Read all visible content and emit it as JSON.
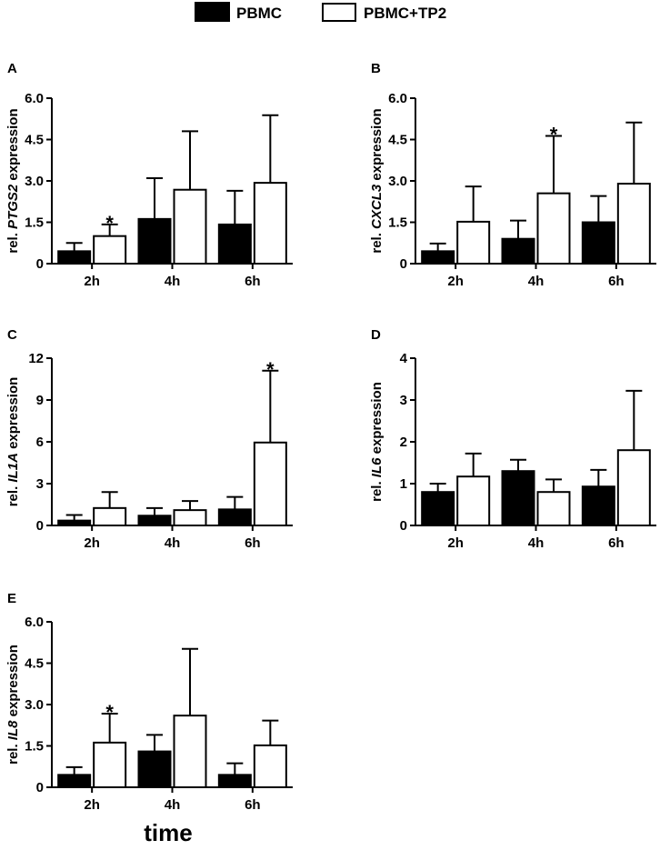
{
  "legend": [
    {
      "label": "PBMC",
      "fill": "#000000"
    },
    {
      "label": "PBMC+TP2",
      "fill": "#ffffff"
    }
  ],
  "x_title": "time",
  "chart_data": [
    {
      "type": "bar",
      "panel": "A",
      "ylabel_prefix": "rel. ",
      "ylabel_gene": "PTGS2",
      "ylabel_suffix": " expression",
      "categories": [
        "2h",
        "4h",
        "6h"
      ],
      "ylim": [
        0,
        6.0
      ],
      "yticks": [
        0,
        1.5,
        3.0,
        4.5,
        6.0
      ],
      "ytick_labels": [
        "0",
        "1.5",
        "3.0",
        "4.5",
        "6.0"
      ],
      "series": [
        {
          "name": "PBMC",
          "values": [
            0.45,
            1.62,
            1.42
          ],
          "errors": [
            0.3,
            1.48,
            1.22
          ]
        },
        {
          "name": "PBMC+TP2",
          "values": [
            1.0,
            2.68,
            2.93
          ],
          "errors": [
            0.42,
            2.12,
            2.45
          ]
        }
      ],
      "significance": [
        {
          "category": "2h",
          "series": "PBMC+TP2",
          "mark": "*"
        }
      ]
    },
    {
      "type": "bar",
      "panel": "B",
      "ylabel_prefix": "rel. ",
      "ylabel_gene": "CXCL3",
      "ylabel_suffix": " expression",
      "categories": [
        "2h",
        "4h",
        "6h"
      ],
      "ylim": [
        0,
        6.0
      ],
      "yticks": [
        0,
        1.5,
        3.0,
        4.5,
        6.0
      ],
      "ytick_labels": [
        "0",
        "1.5",
        "3.0",
        "4.5",
        "6.0"
      ],
      "series": [
        {
          "name": "PBMC",
          "values": [
            0.45,
            0.9,
            1.5
          ],
          "errors": [
            0.28,
            0.66,
            0.95
          ]
        },
        {
          "name": "PBMC+TP2",
          "values": [
            1.52,
            2.55,
            2.9
          ],
          "errors": [
            1.28,
            2.08,
            2.22
          ]
        }
      ],
      "significance": [
        {
          "category": "4h",
          "series": "PBMC+TP2",
          "mark": "*"
        }
      ]
    },
    {
      "type": "bar",
      "panel": "C",
      "ylabel_prefix": "rel. ",
      "ylabel_gene": "IL1A",
      "ylabel_suffix": " expression",
      "categories": [
        "2h",
        "4h",
        "6h"
      ],
      "ylim": [
        0,
        12
      ],
      "yticks": [
        0,
        3,
        6,
        9,
        12
      ],
      "ytick_labels": [
        "0",
        "3",
        "6",
        "9",
        "12"
      ],
      "series": [
        {
          "name": "PBMC",
          "values": [
            0.35,
            0.7,
            1.15
          ],
          "errors": [
            0.4,
            0.55,
            0.9
          ]
        },
        {
          "name": "PBMC+TP2",
          "values": [
            1.25,
            1.1,
            5.95
          ],
          "errors": [
            1.15,
            0.65,
            5.15
          ]
        }
      ],
      "significance": [
        {
          "category": "6h",
          "series": "PBMC+TP2",
          "mark": "*"
        }
      ]
    },
    {
      "type": "bar",
      "panel": "D",
      "ylabel_prefix": "rel. ",
      "ylabel_gene": "IL6",
      "ylabel_suffix": " expression",
      "categories": [
        "2h",
        "4h",
        "6h"
      ],
      "ylim": [
        0,
        4
      ],
      "yticks": [
        0,
        1,
        2,
        3,
        4
      ],
      "ytick_labels": [
        "0",
        "1",
        "2",
        "3",
        "4"
      ],
      "series": [
        {
          "name": "PBMC",
          "values": [
            0.8,
            1.3,
            0.93
          ],
          "errors": [
            0.2,
            0.27,
            0.4
          ]
        },
        {
          "name": "PBMC+TP2",
          "values": [
            1.17,
            0.8,
            1.8
          ],
          "errors": [
            0.55,
            0.3,
            1.42
          ]
        }
      ],
      "significance": []
    },
    {
      "type": "bar",
      "panel": "E",
      "ylabel_prefix": "rel. ",
      "ylabel_gene": "IL8",
      "ylabel_suffix": " expression",
      "categories": [
        "2h",
        "4h",
        "6h"
      ],
      "ylim": [
        0,
        6.0
      ],
      "yticks": [
        0,
        1.5,
        3.0,
        4.5,
        6.0
      ],
      "ytick_labels": [
        "0",
        "1.5",
        "3.0",
        "4.5",
        "6.0"
      ],
      "series": [
        {
          "name": "PBMC",
          "values": [
            0.45,
            1.3,
            0.45
          ],
          "errors": [
            0.28,
            0.6,
            0.42
          ]
        },
        {
          "name": "PBMC+TP2",
          "values": [
            1.62,
            2.6,
            1.52
          ],
          "errors": [
            1.05,
            2.42,
            0.9
          ]
        }
      ],
      "significance": [
        {
          "category": "2h",
          "series": "PBMC+TP2",
          "mark": "*"
        }
      ]
    }
  ]
}
